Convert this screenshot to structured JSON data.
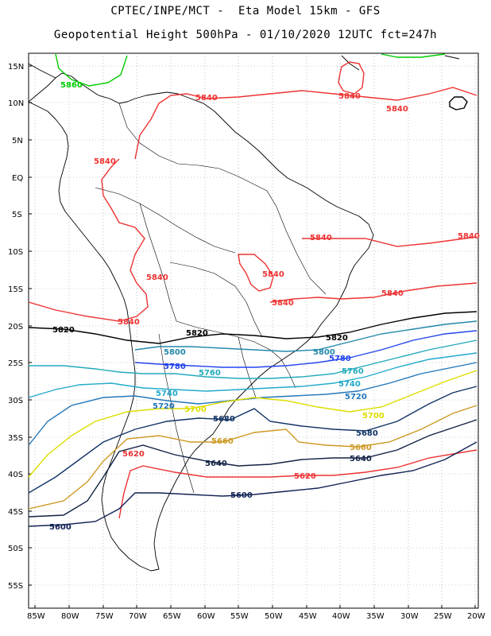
{
  "header": {
    "line1": "CPTEC/INPE/MCT -  Eta Model 15km - GFS",
    "line2": "Geopotential Height 500hPa - 01/10/2020 12UTC fct=247h"
  },
  "axes": {
    "lat_labels": [
      "15N",
      "10N",
      "5N",
      "EQ",
      "5S",
      "10S",
      "15S",
      "20S",
      "25S",
      "30S",
      "35S",
      "40S",
      "45S",
      "50S",
      "55S"
    ],
    "lon_labels": [
      "85W",
      "80W",
      "75W",
      "70W",
      "65W",
      "60W",
      "55W",
      "50W",
      "45W",
      "40W",
      "35W",
      "30W",
      "25W",
      "20W"
    ]
  },
  "contour_labels": [
    {
      "text": "5860",
      "color": "#00cc00"
    },
    {
      "text": "5840",
      "color": "#ee3333"
    },
    {
      "text": "5840",
      "color": "#ee3333"
    },
    {
      "text": "5840",
      "color": "#ee3333"
    },
    {
      "text": "5840",
      "color": "#ee3333"
    },
    {
      "text": "5840",
      "color": "#ee3333"
    },
    {
      "text": "5840",
      "color": "#ee3333"
    },
    {
      "text": "5840",
      "color": "#ee3333"
    },
    {
      "text": "5840",
      "color": "#ee3333"
    },
    {
      "text": "5840",
      "color": "#ee3333"
    },
    {
      "text": "5840",
      "color": "#ee3333"
    },
    {
      "text": "5840",
      "color": "#ee3333"
    },
    {
      "text": "5820",
      "color": "#000000"
    },
    {
      "text": "5820",
      "color": "#000000"
    },
    {
      "text": "5820",
      "color": "#000000"
    },
    {
      "text": "5800",
      "color": "#2288aa"
    },
    {
      "text": "5800",
      "color": "#2288aa"
    },
    {
      "text": "5780",
      "color": "#2244ee"
    },
    {
      "text": "5780",
      "color": "#2244ee"
    },
    {
      "text": "5760",
      "color": "#22aabb"
    },
    {
      "text": "5760",
      "color": "#22aabb"
    },
    {
      "text": "5740",
      "color": "#22aacc"
    },
    {
      "text": "5740",
      "color": "#22aacc"
    },
    {
      "text": "5720",
      "color": "#2277bb"
    },
    {
      "text": "5720",
      "color": "#2277bb"
    },
    {
      "text": "5700",
      "color": "#dddd00"
    },
    {
      "text": "5700",
      "color": "#dddd00"
    },
    {
      "text": "5680",
      "color": "#113366"
    },
    {
      "text": "5680",
      "color": "#113366"
    },
    {
      "text": "5660",
      "color": "#cc9922"
    },
    {
      "text": "5660",
      "color": "#cc9922"
    },
    {
      "text": "5640",
      "color": "#112244"
    },
    {
      "text": "5640",
      "color": "#112244"
    },
    {
      "text": "5620",
      "color": "#ee3333"
    },
    {
      "text": "5620",
      "color": "#ee3333"
    },
    {
      "text": "5600",
      "color": "#112255"
    },
    {
      "text": "5600",
      "color": "#112255"
    }
  ]
}
